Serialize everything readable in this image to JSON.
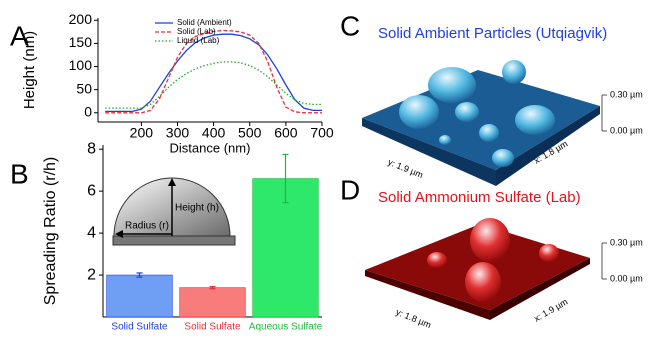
{
  "chart_data": [
    {
      "type": "line",
      "panel": "A",
      "x_label": "Distance (nm)",
      "y_label": "Height (nm)",
      "x": [
        100,
        125,
        150,
        175,
        200,
        225,
        250,
        275,
        300,
        325,
        350,
        375,
        400,
        425,
        450,
        475,
        500,
        525,
        550,
        575,
        600,
        625,
        650,
        675,
        700
      ],
      "xlim": [
        80,
        700
      ],
      "xticks": [
        200,
        300,
        400,
        500,
        600,
        700
      ],
      "ylim": [
        -20,
        205
      ],
      "yticks": [
        0,
        50,
        100,
        150,
        200
      ],
      "legend": "upper center",
      "series": [
        {
          "name": "Solid (Ambient)",
          "color": "#1f3fe0",
          "style": "solid",
          "values": [
            3,
            3,
            3,
            3,
            8,
            25,
            55,
            85,
            112,
            135,
            152,
            162,
            168,
            170,
            170,
            167,
            160,
            147,
            125,
            95,
            60,
            28,
            10,
            5,
            5
          ]
        },
        {
          "name": "Solid (Lab)",
          "color": "#e8303a",
          "style": "dashed",
          "values": [
            0,
            0,
            0,
            0,
            0,
            5,
            30,
            75,
            120,
            150,
            165,
            172,
            176,
            178,
            177,
            175,
            168,
            150,
            110,
            55,
            12,
            2,
            0,
            0,
            0
          ]
        },
        {
          "name": "Liquid (Lab)",
          "color": "#22a82e",
          "style": "dotted",
          "values": [
            10,
            10,
            10,
            10,
            10,
            18,
            35,
            55,
            72,
            85,
            95,
            102,
            107,
            110,
            110,
            108,
            102,
            92,
            78,
            60,
            42,
            28,
            20,
            18,
            18
          ]
        }
      ]
    },
    {
      "type": "bar",
      "panel": "B",
      "y_label": "Spreading Ratio (r/h)",
      "categories": [
        "Solid Sulfate",
        "Solid Sulfate",
        "Aqueous Sulfate"
      ],
      "values": [
        2.0,
        1.4,
        6.6
      ],
      "errors": [
        0.1,
        0.05,
        1.15
      ],
      "colors": [
        "#6e9ff5",
        "#f87c7c",
        "#2ee86a"
      ],
      "edge_colors": [
        "#1f3fe0",
        "#e8303a",
        "#1fb83e"
      ],
      "ylim": [
        0,
        8.2
      ],
      "yticks": [
        2,
        4,
        6,
        8
      ],
      "annotations": [
        "Height (h)",
        "Radius (r)"
      ]
    }
  ],
  "panels": [
    {
      "letter": "C",
      "title": "Solid Ambient Particles (Utqiaġvik)",
      "scale_top": "0.30 µm",
      "scale_bottom": "0.00 µm",
      "y_label": "y: 1.9 µm",
      "x_label": "x: 1.8 µm"
    },
    {
      "letter": "D",
      "title": "Solid Ammonium Sulfate (Lab)",
      "scale_top": "0.30 µm",
      "scale_bottom": "0.00 µm",
      "y_label": "y: 1.8 µm",
      "x_label": "x: 1.9 µm"
    }
  ]
}
